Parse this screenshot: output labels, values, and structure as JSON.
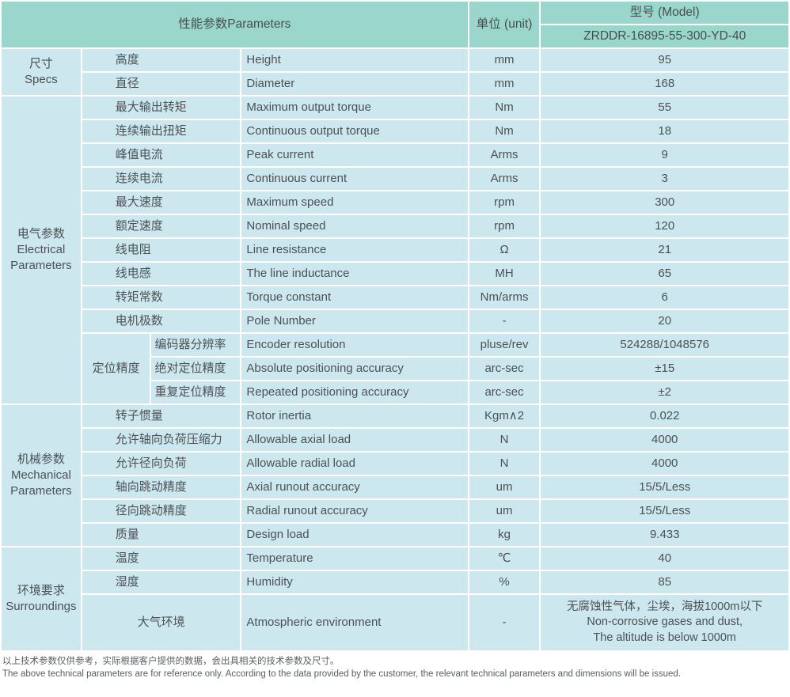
{
  "colors": {
    "header_bg": "#9bd6cc",
    "cell_bg": "#cce8ee",
    "gap": "#ffffff",
    "text": "#4b5155"
  },
  "header": {
    "parameters_label": "性能参数Parameters",
    "unit_label": "单位 (unit)",
    "model_label": "型号 (Model)",
    "model_value": "ZRDDR-16895-55-300-YD-40"
  },
  "sections": [
    {
      "cn": "尺寸",
      "en": "Specs",
      "rows": [
        {
          "cn": "高度",
          "en": "Height",
          "unit": "mm",
          "value": "95"
        },
        {
          "cn": "直径",
          "en": "Diameter",
          "unit": "mm",
          "value": "168"
        }
      ]
    },
    {
      "cn": "电气参数",
      "en": "Electrical Parameters",
      "rows": [
        {
          "cn": "最大输出转矩",
          "en": "Maximum output torque",
          "unit": "Nm",
          "value": "55"
        },
        {
          "cn": "连续输出扭矩",
          "en": "Continuous output torque",
          "unit": "Nm",
          "value": "18"
        },
        {
          "cn": "峰值电流",
          "en": "Peak current",
          "unit": "Arms",
          "value": "9"
        },
        {
          "cn": "连续电流",
          "en": "Continuous current",
          "unit": "Arms",
          "value": "3"
        },
        {
          "cn": "最大速度",
          "en": "Maximum speed",
          "unit": "rpm",
          "value": "300"
        },
        {
          "cn": "额定速度",
          "en": "Nominal speed",
          "unit": "rpm",
          "value": "120"
        },
        {
          "cn": "线电阻",
          "en": "Line resistance",
          "unit": "Ω",
          "value": "21"
        },
        {
          "cn": "线电感",
          "en": "The line inductance",
          "unit": "MH",
          "value": "65"
        },
        {
          "cn": "转矩常数",
          "en": "Torque constant",
          "unit": "Nm/arms",
          "value": "6"
        },
        {
          "cn": "电机极数",
          "en": "Pole Number",
          "unit": "-",
          "value": "20"
        },
        {
          "group": "定位精度",
          "group_span": 3,
          "cn": "编码器分辨率",
          "en": "Encoder resolution",
          "unit": "pluse/rev",
          "value": "524288/1048576"
        },
        {
          "in_group": true,
          "cn": "绝对定位精度",
          "en": "Absolute positioning accuracy",
          "unit": "arc-sec",
          "value": "±15"
        },
        {
          "in_group": true,
          "cn": "重复定位精度",
          "en": "Repeated positioning accuracy",
          "unit": "arc-sec",
          "value": "±2"
        }
      ]
    },
    {
      "cn": "机械参数",
      "en": "Mechanical Parameters",
      "rows": [
        {
          "cn": "转子惯量",
          "en": "Rotor inertia",
          "unit": "Kgm∧2",
          "value": "0.022"
        },
        {
          "cn": "允许轴向负荷压缩力",
          "en": "Allowable axial load",
          "unit": "N",
          "value": "4000"
        },
        {
          "cn": "允许径向负荷",
          "en": "Allowable radial load",
          "unit": "N",
          "value": "4000"
        },
        {
          "cn": "轴向跳动精度",
          "en": "Axial runout accuracy",
          "unit": "um",
          "value": "15/5/Less"
        },
        {
          "cn": "径向跳动精度",
          "en": "Radial runout accuracy",
          "unit": "um",
          "value": "15/5/Less"
        },
        {
          "cn": "质量",
          "en": "Design load",
          "unit": "kg",
          "value": "9.433"
        }
      ]
    },
    {
      "cn": "环境要求",
      "en": "Surroundings",
      "rows": [
        {
          "cn": "温度",
          "en": "Temperature",
          "unit": "℃",
          "value": "40"
        },
        {
          "cn": "湿度",
          "en": "Humidity",
          "unit": "%",
          "value": "85"
        },
        {
          "cn": "大气环境",
          "cn_center": true,
          "tall": true,
          "en": "Atmospheric environment",
          "unit": "-",
          "value": [
            "无腐蚀性气体，尘埃，海拔1000m以下",
            "Non-corrosive gases and dust,",
            "The altitude is below 1000m"
          ]
        }
      ]
    }
  ],
  "footer": {
    "note_cn": "以上技术参数仅供参考，实际根据客户提供的数据，会出具相关的技术参数及尺寸。",
    "note_en": "The above technical parameters are for reference only. According to the data provided by the customer, the relevant technical parameters and dimensions will be issued."
  }
}
